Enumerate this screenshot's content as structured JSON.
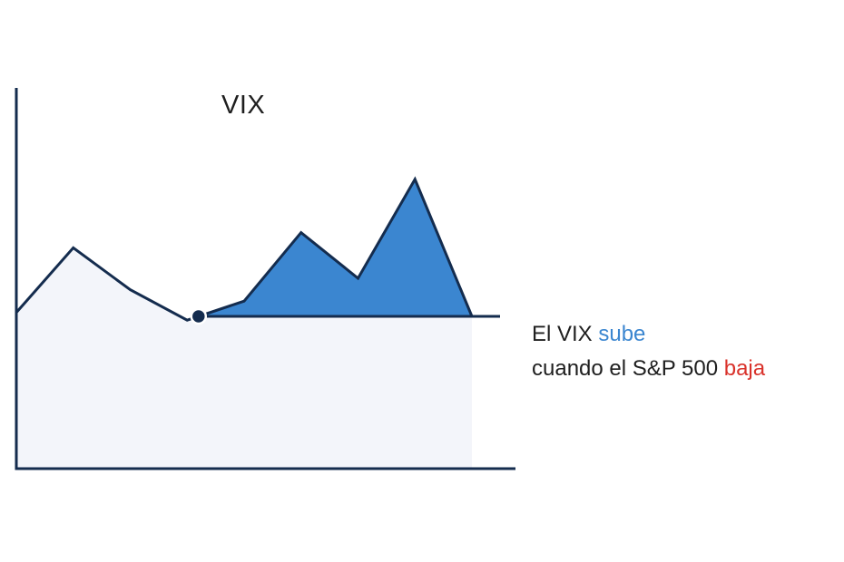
{
  "chart_data": {
    "type": "area",
    "title": "VIX",
    "x": [
      0,
      1,
      2,
      3,
      4,
      5,
      6,
      7,
      8
    ],
    "values": [
      41,
      58,
      47,
      39,
      44,
      62,
      50,
      76,
      40
    ],
    "reference_level": 40,
    "ylim": [
      0,
      100
    ],
    "grid": false,
    "annotation": {
      "line1_prefix": "El VIX ",
      "line1_highlight": "sube",
      "line2_prefix": "cuando el S&P 500 ",
      "line2_highlight": "baja"
    }
  },
  "colors": {
    "axis": "#142c4e",
    "line": "#142c4e",
    "area_fill": "#f3f5fa",
    "highlight_fill": "#3b86d0",
    "highlight_text_up": "#3b86d0",
    "highlight_text_down": "#d9322b"
  }
}
